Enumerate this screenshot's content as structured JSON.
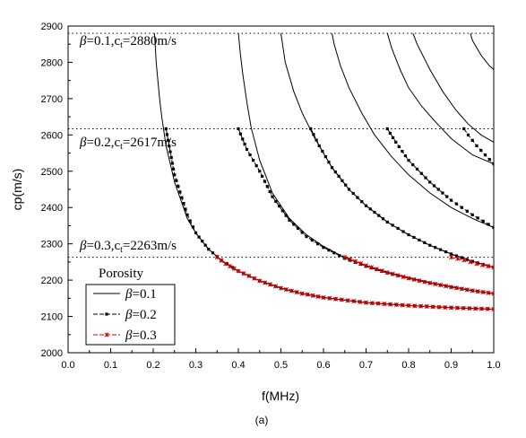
{
  "chart_data": {
    "type": "line",
    "title": "",
    "xlabel": "f(MHz)",
    "ylabel": "cp(m/s)",
    "caption": "(a)",
    "xlim": [
      0.0,
      1.0
    ],
    "ylim": [
      2000,
      2900
    ],
    "x_ticks": [
      "0.0",
      "0.1",
      "0.2",
      "0.3",
      "0.4",
      "0.5",
      "0.6",
      "0.7",
      "0.8",
      "0.9",
      "1.0"
    ],
    "y_ticks": [
      "2000",
      "2100",
      "2200",
      "2300",
      "2400",
      "2500",
      "2600",
      "2700",
      "2800",
      "2900"
    ],
    "grid": false,
    "legend": {
      "title": "Porosity",
      "placement": "bottom-left",
      "entries": [
        {
          "prefix": "β",
          "label": "=0.1",
          "style": "solid",
          "marker": "none",
          "color": "#000000"
        },
        {
          "prefix": "β",
          "label": "=0.2",
          "style": "dash",
          "marker": "square",
          "color": "#000000"
        },
        {
          "prefix": "β",
          "label": "=0.3",
          "style": "dash",
          "marker": "star",
          "color": "#cc0000"
        }
      ]
    },
    "reference_lines": [
      {
        "y": 2880,
        "beta": "β",
        "label": "=0.1,c",
        "sub": "t",
        "value": "=2880m/s"
      },
      {
        "y": 2617,
        "beta": "β",
        "label": "=0.2,c",
        "sub": "t",
        "value": "=2617m/s"
      },
      {
        "y": 2263,
        "beta": "β",
        "label": "=0.3,c",
        "sub": "t",
        "value": "=2263m/s"
      }
    ],
    "series": [
      {
        "name": "β=0.1",
        "style": "solid",
        "color": "#000000",
        "curves": [
          {
            "x": [
              0.203,
              0.205,
              0.207,
              0.21,
              0.215,
              0.22,
              0.23,
              0.25,
              0.28,
              0.3,
              0.33,
              0.36,
              0.4,
              0.45,
              0.5,
              0.55,
              0.6,
              0.7,
              0.8,
              0.9,
              1.0
            ],
            "y": [
              2880,
              2840,
              2800,
              2760,
              2700,
              2650,
              2570,
              2470,
              2370,
              2330,
              2285,
              2255,
              2225,
              2198,
              2178,
              2163,
              2152,
              2138,
              2130,
              2124,
              2120
            ]
          },
          {
            "x": [
              0.4,
              0.405,
              0.41,
              0.42,
              0.43,
              0.45,
              0.48,
              0.52,
              0.56,
              0.6,
              0.65,
              0.7,
              0.75,
              0.8,
              0.85,
              0.9,
              0.95,
              1.0
            ],
            "y": [
              2880,
              2820,
              2770,
              2690,
              2620,
              2530,
              2440,
              2370,
              2325,
              2293,
              2262,
              2240,
              2222,
              2207,
              2193,
              2182,
              2171,
              2163
            ]
          },
          {
            "x": [
              0.5,
              0.51,
              0.53,
              0.55,
              0.58,
              0.62,
              0.66,
              0.7,
              0.75,
              0.8,
              0.85,
              0.9,
              0.95,
              1.0
            ],
            "y": [
              2880,
              2800,
              2720,
              2660,
              2590,
              2510,
              2450,
              2405,
              2360,
              2325,
              2296,
              2272,
              2252,
              2235
            ]
          },
          {
            "x": [
              0.62,
              0.625,
              0.64,
              0.66,
              0.69,
              0.72,
              0.76,
              0.8,
              0.85,
              0.9,
              0.95,
              1.0
            ],
            "y": [
              2880,
              2850,
              2790,
              2730,
              2660,
              2600,
              2540,
              2490,
              2440,
              2400,
              2370,
              2345
            ]
          },
          {
            "x": [
              0.75,
              0.76,
              0.78,
              0.8,
              0.83,
              0.86,
              0.9,
              0.95,
              1.0
            ],
            "y": [
              2880,
              2840,
              2780,
              2730,
              2680,
              2640,
              2590,
              2545,
              2520
            ]
          },
          {
            "x": [
              0.81,
              0.82,
              0.85,
              0.88,
              0.91,
              0.94,
              0.97,
              1.0
            ],
            "y": [
              2880,
              2850,
              2780,
              2720,
              2670,
              2630,
              2600,
              2580
            ]
          },
          {
            "x": [
              0.945,
              0.95,
              0.96,
              0.97,
              0.98,
              0.99,
              1.0
            ],
            "y": [
              2880,
              2860,
              2840,
              2820,
              2805,
              2790,
              2780
            ]
          }
        ]
      },
      {
        "name": "β=0.2",
        "style": "dash",
        "marker": "square",
        "color": "#000000",
        "curves": [
          {
            "x": [
              0.23,
              0.25,
              0.28,
              0.3,
              0.33,
              0.36,
              0.4,
              0.45,
              0.5,
              0.55,
              0.6,
              0.7,
              0.8,
              0.9,
              1.0
            ],
            "y": [
              2617,
              2490,
              2380,
              2330,
              2285,
              2255,
              2225,
              2198,
              2178,
              2163,
              2152,
              2138,
              2130,
              2124,
              2120
            ]
          },
          {
            "x": [
              0.4,
              0.42,
              0.45,
              0.48,
              0.52,
              0.56,
              0.6,
              0.65,
              0.7,
              0.75,
              0.8,
              0.85,
              0.9,
              0.95,
              1.0
            ],
            "y": [
              2617,
              2560,
              2500,
              2430,
              2365,
              2320,
              2290,
              2260,
              2238,
              2220,
              2205,
              2192,
              2181,
              2171,
              2163
            ]
          },
          {
            "x": [
              0.57,
              0.59,
              0.62,
              0.66,
              0.7,
              0.75,
              0.8,
              0.85,
              0.9,
              0.95,
              1.0
            ],
            "y": [
              2617,
              2570,
              2510,
              2450,
              2405,
              2360,
              2325,
              2296,
              2272,
              2252,
              2235
            ]
          },
          {
            "x": [
              0.75,
              0.77,
              0.8,
              0.85,
              0.9,
              0.95,
              1.0
            ],
            "y": [
              2617,
              2580,
              2530,
              2470,
              2420,
              2380,
              2345
            ]
          },
          {
            "x": [
              0.93,
              0.94,
              0.96,
              0.98,
              1.0
            ],
            "y": [
              2617,
              2600,
              2570,
              2545,
              2520
            ]
          }
        ]
      },
      {
        "name": "β=0.3",
        "style": "dash",
        "marker": "star",
        "color": "#cc0000",
        "curves": [
          {
            "x": [
              0.35,
              0.37,
              0.4,
              0.45,
              0.5,
              0.55,
              0.6,
              0.7,
              0.8,
              0.9,
              1.0
            ],
            "y": [
              2263,
              2245,
              2225,
              2198,
              2178,
              2163,
              2152,
              2138,
              2130,
              2124,
              2120
            ]
          },
          {
            "x": [
              0.65,
              0.7,
              0.75,
              0.8,
              0.85,
              0.9,
              0.95,
              1.0
            ],
            "y": [
              2263,
              2240,
              2221,
              2205,
              2192,
              2181,
              2171,
              2163
            ]
          },
          {
            "x": [
              0.9,
              0.93,
              0.96,
              1.0
            ],
            "y": [
              2263,
              2255,
              2245,
              2235
            ]
          }
        ]
      }
    ]
  }
}
